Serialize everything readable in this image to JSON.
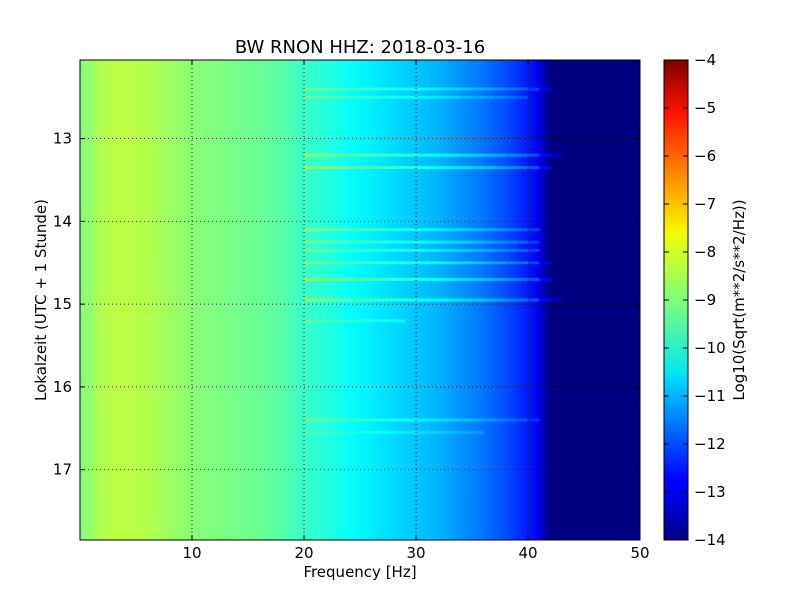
{
  "chart_data": {
    "type": "heatmap",
    "title": "BW RNON HHZ: 2018-03-16",
    "xlabel": "Frequency [Hz]",
    "ylabel": "Lokalzeit (UTC + 1 Stunde)",
    "xlim": [
      0,
      50
    ],
    "ylim": [
      12.05,
      17.85
    ],
    "y_inverted": true,
    "x_ticks": [
      10,
      20,
      30,
      40,
      50
    ],
    "y_ticks": [
      13,
      14,
      15,
      16,
      17
    ],
    "grid": true,
    "colormap": "jet",
    "colorbar": {
      "label": "Log10(Sqrt(m**2/s**2/Hz))",
      "range": [
        -14,
        -4
      ],
      "ticks": [
        -4,
        -5,
        -6,
        -7,
        -8,
        -9,
        -10,
        -11,
        -12,
        -13,
        -14
      ]
    },
    "spectrum_profile": {
      "frequency_hz": [
        0,
        2,
        4,
        6,
        8,
        10,
        12,
        14,
        16,
        18,
        20,
        22,
        24,
        26,
        28,
        30,
        32,
        34,
        36,
        38,
        40,
        41,
        42,
        44,
        46,
        48,
        50
      ],
      "log10_amplitude": [
        -9.0,
        -8.5,
        -8.4,
        -8.5,
        -8.7,
        -8.9,
        -9.0,
        -9.1,
        -9.2,
        -9.4,
        -9.7,
        -9.9,
        -10.2,
        -10.4,
        -10.6,
        -10.8,
        -11.0,
        -11.3,
        -11.6,
        -12.0,
        -12.5,
        -13.0,
        -14.0,
        -14.0,
        -14.0,
        -14.0,
        -14.0
      ]
    },
    "bands": [
      {
        "time": 12.4,
        "fmax": 42,
        "delta": 0.6
      },
      {
        "time": 12.5,
        "fmax": 40,
        "delta": 0.5
      },
      {
        "time": 13.2,
        "fmax": 43,
        "delta": 0.8
      },
      {
        "time": 13.35,
        "fmax": 42,
        "delta": 0.8
      },
      {
        "time": 14.1,
        "fmax": 41,
        "delta": 0.6
      },
      {
        "time": 14.25,
        "fmax": 41,
        "delta": 0.6
      },
      {
        "time": 14.35,
        "fmax": 41,
        "delta": 0.6
      },
      {
        "time": 14.5,
        "fmax": 42,
        "delta": 0.7
      },
      {
        "time": 14.7,
        "fmax": 42,
        "delta": 0.8
      },
      {
        "time": 14.95,
        "fmax": 43,
        "delta": 0.8
      },
      {
        "time": 15.2,
        "fmax": 29,
        "delta": 0.4
      },
      {
        "time": 16.4,
        "fmax": 41,
        "delta": 0.5
      },
      {
        "time": 16.55,
        "fmax": 36,
        "delta": 0.3
      }
    ]
  }
}
